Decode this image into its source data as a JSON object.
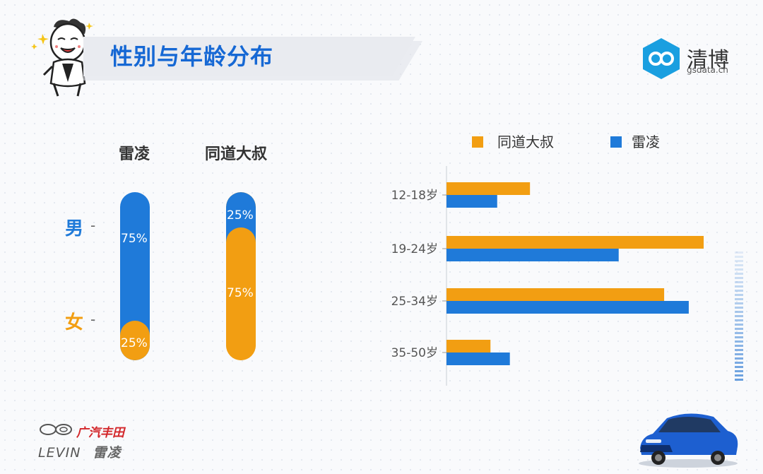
{
  "header": {
    "title": "性别与年龄分布"
  },
  "logo": {
    "name": "清博",
    "domain": "gsdata.cn"
  },
  "gender_chart": {
    "col_left": "雷凌",
    "col_right": "同道大叔",
    "male_label": "男",
    "female_label": "女",
    "dash": "-",
    "left": {
      "male": "75%",
      "female": "25%"
    },
    "right": {
      "male": "25%",
      "female": "75%"
    }
  },
  "age_legend": {
    "series_a": "同道大叔",
    "series_b": "雷凌"
  },
  "chart_data": [
    {
      "type": "bar",
      "categories": [
        "雷凌",
        "同道大叔"
      ],
      "series": [
        {
          "name": "男",
          "values": [
            75,
            25
          ]
        },
        {
          "name": "女",
          "values": [
            25,
            75
          ]
        }
      ],
      "colors": {
        "男": "#1f7ad9",
        "女": "#f29e12"
      },
      "unit": "%"
    },
    {
      "type": "bar",
      "orientation": "horizontal",
      "categories": [
        "12-18岁",
        "19-24岁",
        "25-34岁",
        "35-50岁"
      ],
      "series": [
        {
          "name": "同道大叔",
          "values": [
            11.2,
            34.5,
            29.2,
            5.9
          ]
        },
        {
          "name": "雷凌",
          "values": [
            6.8,
            23.1,
            32.5,
            8.5
          ]
        }
      ],
      "colors": {
        "同道大叔": "#f29e12",
        "雷凌": "#1f7ad9"
      },
      "legend": "top",
      "grid": false
    }
  ],
  "footer": {
    "brand": "广汽丰田",
    "model_en": "LEVIN",
    "model_cn": "雷凌"
  },
  "colors": {
    "blue": "#1f7ad9",
    "orange": "#f29e12",
    "title_blue": "#1668d4",
    "logo_blue": "#1a9fe0"
  }
}
